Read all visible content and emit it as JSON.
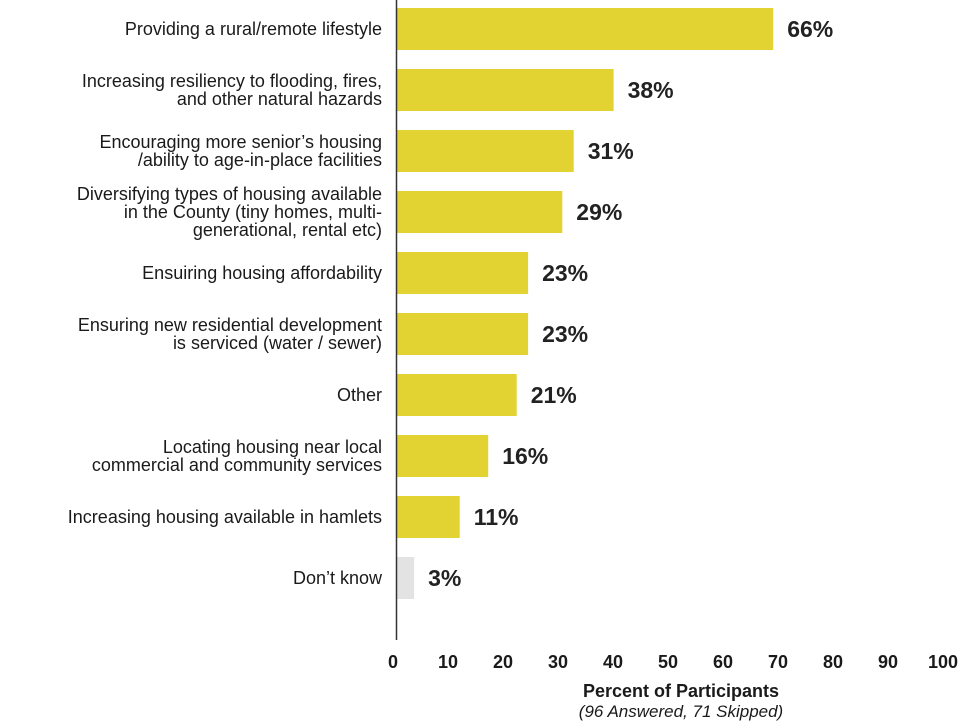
{
  "chart_data": {
    "type": "bar",
    "orientation": "horizontal",
    "categories": [
      [
        "Providing a rural/remote lifestyle"
      ],
      [
        "Increasing resiliency to flooding, fires,",
        "and other natural hazards"
      ],
      [
        "Encouraging more senior’s housing",
        "/ability to age-in-place facilities"
      ],
      [
        "Diversifying types of housing available",
        "in the County (tiny homes, multi-",
        "generational, rental etc)"
      ],
      [
        "Ensuiring housing affordability"
      ],
      [
        "Ensuring new residential development",
        "is serviced (water / sewer)"
      ],
      [
        "Other"
      ],
      [
        "Locating housing near local",
        "commercial and community services"
      ],
      [
        "Increasing housing available in hamlets"
      ],
      [
        "Don’t know"
      ]
    ],
    "values": [
      66,
      38,
      31,
      29,
      23,
      23,
      21,
      16,
      11,
      3
    ],
    "value_labels": [
      "66%",
      "38%",
      "31%",
      "29%",
      "23%",
      "23%",
      "21%",
      "16%",
      "11%",
      "3%"
    ],
    "bar_colors": [
      "#e2d232",
      "#e2d232",
      "#e2d232",
      "#e2d232",
      "#e2d232",
      "#e2d232",
      "#e2d232",
      "#e2d232",
      "#e2d232",
      "#e3e3e3"
    ],
    "xlim": [
      0,
      100
    ],
    "xticks": [
      0,
      10,
      20,
      30,
      40,
      50,
      60,
      70,
      80,
      90,
      100
    ],
    "xlabel": "Percent of Participants",
    "xlabel_note": "(96 Answered, 71 Skipped)",
    "grid": false,
    "axis_color": "#333333"
  }
}
